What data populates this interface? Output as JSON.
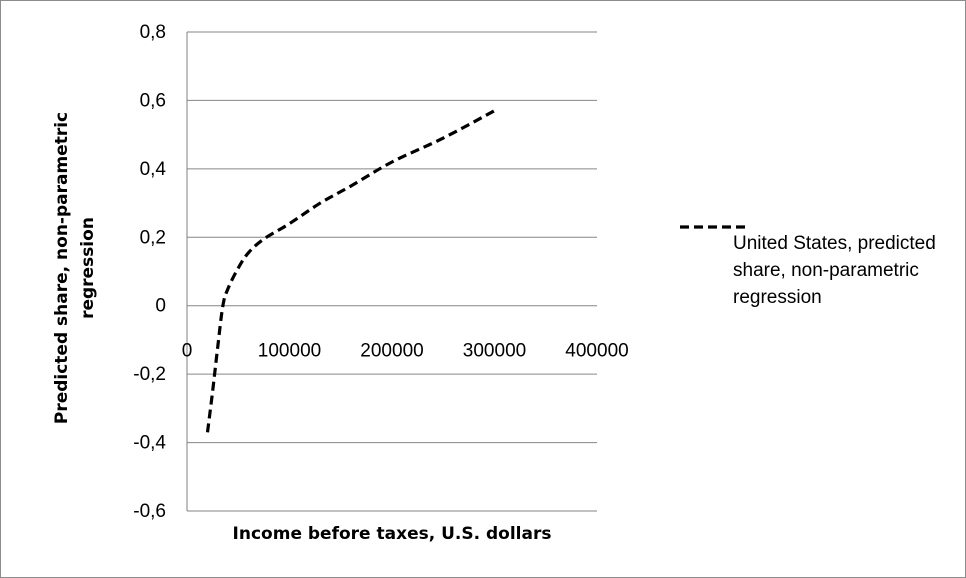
{
  "chart_data": {
    "type": "line",
    "title": "",
    "xlabel": "Income before taxes, U.S. dollars",
    "ylabel": "Predicted share, non-parametric regression",
    "xlim": [
      0,
      400000
    ],
    "ylim": [
      -0.6,
      0.8
    ],
    "x_ticks": [
      "0",
      "100000",
      "200000",
      "300000",
      "400000"
    ],
    "y_ticks": [
      "0,8",
      "0,6",
      "0,4",
      "0,2",
      "0",
      "-0,2",
      "-0,4",
      "-0,6"
    ],
    "grid": true,
    "legend_position": "right",
    "series": [
      {
        "name": "United States, predicted share, non-parametric regression",
        "style": "dashed",
        "color": "#000000",
        "x": [
          20000,
          25000,
          30000,
          35000,
          40000,
          50000,
          60000,
          75000,
          100000,
          130000,
          160000,
          200000,
          250000,
          300000
        ],
        "y": [
          -0.37,
          -0.25,
          -0.12,
          0.0,
          0.05,
          0.11,
          0.155,
          0.195,
          0.24,
          0.3,
          0.35,
          0.42,
          0.49,
          0.57
        ]
      }
    ]
  }
}
